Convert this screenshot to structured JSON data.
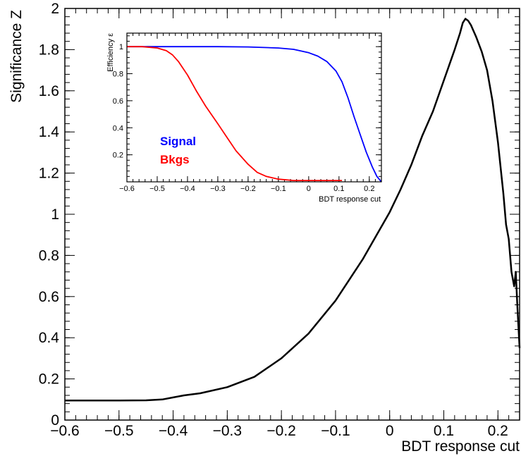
{
  "chart_data": [
    {
      "type": "line",
      "title": "",
      "xlabel": "BDT response cut",
      "ylabel": "Significance Z",
      "xlim": [
        -0.6,
        0.24
      ],
      "ylim": [
        0,
        2
      ],
      "x_ticks": [
        -0.6,
        -0.5,
        -0.4,
        -0.3,
        -0.2,
        -0.1,
        0,
        0.1,
        0.2
      ],
      "x_tick_labels": [
        "−0.6",
        "−0.5",
        "−0.4",
        "−0.3",
        "−0.2",
        "−0.1",
        "0",
        "0.1",
        "0.2"
      ],
      "y_ticks": [
        0,
        0.2,
        0.4,
        0.6,
        0.8,
        1,
        1.2,
        1.4,
        1.6,
        1.8,
        2
      ],
      "y_tick_labels": [
        "0",
        "0.2",
        "0.4",
        "0.6",
        "0.8",
        "1",
        "1.2",
        "1.4",
        "1.6",
        "1.8",
        "2"
      ],
      "grid": false,
      "series": [
        {
          "color": "#000000",
          "x": [
            -0.6,
            -0.55,
            -0.5,
            -0.45,
            -0.42,
            -0.4,
            -0.38,
            -0.35,
            -0.3,
            -0.25,
            -0.2,
            -0.15,
            -0.1,
            -0.05,
            0,
            0.02,
            0.04,
            0.06,
            0.08,
            0.1,
            0.12,
            0.13,
            0.135,
            0.14,
            0.145,
            0.15,
            0.16,
            0.17,
            0.18,
            0.19,
            0.2,
            0.21,
            0.215,
            0.22,
            0.225,
            0.23,
            0.233,
            0.236,
            0.24
          ],
          "y": [
            0.095,
            0.095,
            0.095,
            0.096,
            0.1,
            0.11,
            0.12,
            0.13,
            0.16,
            0.21,
            0.3,
            0.42,
            0.58,
            0.78,
            1.01,
            1.12,
            1.24,
            1.38,
            1.5,
            1.65,
            1.8,
            1.88,
            1.93,
            1.95,
            1.94,
            1.92,
            1.86,
            1.79,
            1.7,
            1.55,
            1.35,
            1.1,
            0.95,
            0.88,
            0.72,
            0.65,
            0.72,
            0.55,
            0.35
          ]
        }
      ]
    },
    {
      "type": "line",
      "title": "",
      "xlabel": "BDT response cut",
      "ylabel": "Efficiency ε",
      "xlim": [
        -0.6,
        0.24
      ],
      "ylim": [
        0,
        1.1
      ],
      "x_ticks": [
        -0.6,
        -0.5,
        -0.4,
        -0.3,
        -0.2,
        -0.1,
        0,
        0.1,
        0.2
      ],
      "x_tick_labels": [
        "−0.6",
        "−0.5",
        "−0.4",
        "−0.3",
        "−0.2",
        "−0.1",
        "0",
        "0.1",
        "0.2"
      ],
      "y_ticks": [
        0.2,
        0.4,
        0.6,
        0.8,
        1
      ],
      "y_tick_labels": [
        "0.2",
        "0.4",
        "0.6",
        "0.8",
        "1"
      ],
      "grid": false,
      "legend_placement": "bottom-left",
      "series": [
        {
          "name": "Signal",
          "color": "#0000ff",
          "x": [
            -0.6,
            -0.5,
            -0.4,
            -0.3,
            -0.2,
            -0.1,
            -0.05,
            0,
            0.03,
            0.06,
            0.09,
            0.11,
            0.13,
            0.15,
            0.17,
            0.19,
            0.21,
            0.225,
            0.24
          ],
          "y": [
            1.0,
            1.0,
            1.0,
            1.0,
            0.998,
            0.99,
            0.98,
            0.955,
            0.93,
            0.89,
            0.82,
            0.74,
            0.62,
            0.48,
            0.35,
            0.22,
            0.11,
            0.04,
            0.0
          ]
        },
        {
          "name": "Bkgs",
          "color": "#ff0000",
          "x": [
            -0.6,
            -0.55,
            -0.5,
            -0.47,
            -0.45,
            -0.43,
            -0.4,
            -0.37,
            -0.34,
            -0.3,
            -0.27,
            -0.24,
            -0.2,
            -0.17,
            -0.14,
            -0.1,
            -0.05,
            0,
            0.05,
            0.11
          ],
          "y": [
            1.0,
            1.0,
            0.99,
            0.97,
            0.94,
            0.89,
            0.79,
            0.67,
            0.56,
            0.43,
            0.33,
            0.23,
            0.13,
            0.07,
            0.04,
            0.02,
            0.01,
            0.01,
            0.01,
            0.01
          ]
        }
      ]
    }
  ]
}
